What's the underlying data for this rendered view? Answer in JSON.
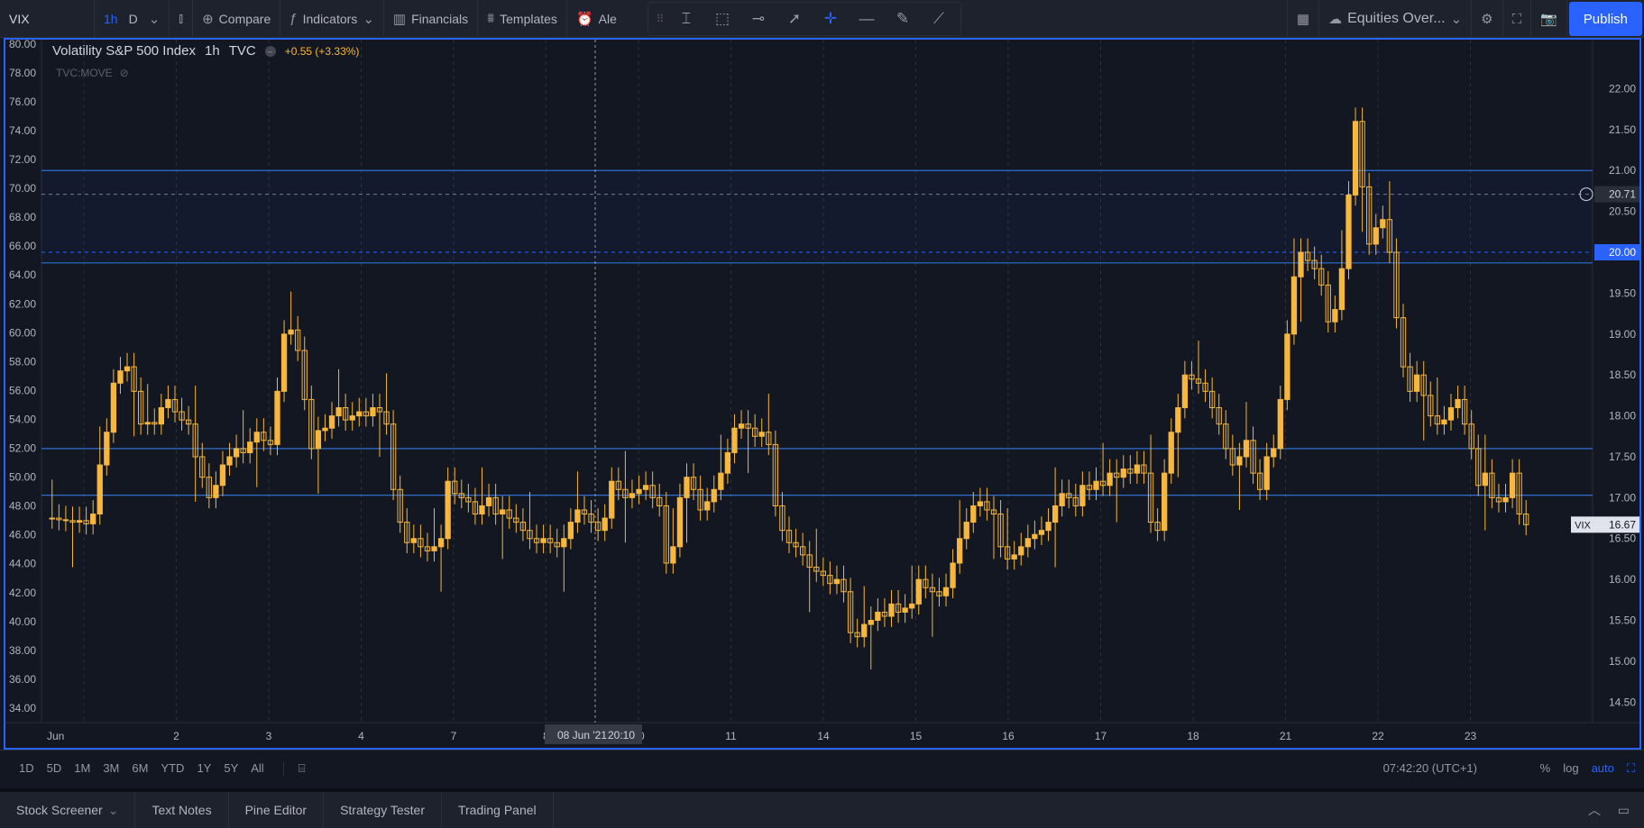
{
  "toolbar": {
    "symbol": "VIX",
    "timeframes": [
      "1h",
      "D"
    ],
    "compare": "Compare",
    "indicators": "Indicators",
    "financials": "Financials",
    "templates": "Templates",
    "alert": "Ale",
    "layout": "Equities Over...",
    "publish": "Publish"
  },
  "legend": {
    "title": "Volatility S&P 500 Index",
    "interval": "1h",
    "source": "TVC",
    "change": "+0.55 (+3.33%)",
    "secondary": "TVC:MOVE"
  },
  "colors": {
    "candle": "#f6b73c",
    "accent": "#2962ff",
    "hline": "#2f6fd1",
    "background": "#131722"
  },
  "chart_data": {
    "type": "candlestick",
    "symbol": "VIX",
    "left_axis": {
      "ticks": [
        "80.00",
        "78.00",
        "76.00",
        "74.00",
        "72.00",
        "70.00",
        "68.00",
        "66.00",
        "64.00",
        "62.00",
        "60.00",
        "58.00",
        "56.00",
        "54.00",
        "52.00",
        "50.00",
        "48.00",
        "46.00",
        "44.00",
        "42.00",
        "40.00",
        "38.00",
        "36.00",
        "34.00"
      ],
      "range": [
        33,
        80.3
      ]
    },
    "right_axis": {
      "ticks": [
        "22.00",
        "21.50",
        "21.00",
        "20.50",
        "20.00",
        "19.50",
        "19.00",
        "18.50",
        "18.00",
        "17.50",
        "17.00",
        "16.50",
        "16.00",
        "15.50",
        "15.00",
        "14.50"
      ],
      "range": [
        14.25,
        22.6
      ]
    },
    "x_ticks": [
      "Jun",
      "2",
      "3",
      "4",
      "7",
      "8",
      "10",
      "11",
      "14",
      "15",
      "16",
      "17",
      "18",
      "21",
      "22",
      "23"
    ],
    "crosshair_label": "08 Jun '21",
    "crosshair_time": "20:10",
    "price_labels": {
      "last": "16.67",
      "last_tag": "VIX",
      "mark_1": "20.71",
      "mark_2": "20.00"
    },
    "horizontal_lines": [
      21.0,
      19.87,
      17.6,
      17.03
    ],
    "dashed_lines": [
      20.71,
      20.0
    ],
    "closes": [
      16.75,
      16.73,
      16.72,
      16.7,
      16.72,
      16.68,
      16.8,
      17.4,
      17.8,
      18.4,
      18.55,
      18.6,
      18.3,
      17.9,
      17.92,
      17.9,
      18.1,
      18.2,
      18.05,
      17.95,
      17.9,
      17.5,
      17.25,
      17.0,
      17.15,
      17.4,
      17.5,
      17.6,
      17.55,
      17.68,
      17.8,
      17.7,
      17.65,
      18.3,
      19.0,
      19.05,
      18.8,
      18.2,
      17.6,
      17.82,
      17.85,
      18.0,
      18.1,
      17.95,
      18.0,
      18.05,
      18.0,
      18.1,
      18.05,
      17.9,
      17.1,
      16.7,
      16.45,
      16.5,
      16.4,
      16.35,
      16.4,
      16.5,
      17.2,
      17.05,
      17.0,
      16.95,
      16.8,
      16.9,
      17.0,
      16.8,
      16.85,
      16.75,
      16.7,
      16.6,
      16.5,
      16.45,
      16.5,
      16.45,
      16.4,
      16.5,
      16.7,
      16.85,
      16.8,
      16.7,
      16.6,
      16.75,
      17.2,
      17.1,
      17.0,
      17.05,
      17.1,
      17.15,
      17.0,
      16.9,
      16.2,
      16.4,
      17.0,
      17.25,
      17.1,
      16.85,
      16.95,
      17.1,
      17.3,
      17.55,
      17.85,
      17.9,
      17.85,
      17.75,
      17.8,
      17.65,
      16.9,
      16.6,
      16.45,
      16.4,
      16.3,
      16.15,
      16.1,
      16.05,
      15.95,
      16.0,
      15.85,
      15.35,
      15.3,
      15.45,
      15.5,
      15.6,
      15.55,
      15.7,
      15.6,
      15.65,
      15.7,
      16.0,
      15.9,
      15.85,
      15.8,
      15.9,
      16.2,
      16.5,
      16.7,
      16.9,
      16.95,
      16.85,
      16.8,
      16.4,
      16.25,
      16.3,
      16.4,
      16.5,
      16.55,
      16.6,
      16.7,
      16.9,
      17.05,
      17.0,
      16.9,
      17.15,
      17.1,
      17.2,
      17.15,
      17.3,
      17.25,
      17.35,
      17.3,
      17.4,
      17.3,
      16.7,
      16.6,
      17.3,
      17.8,
      18.1,
      18.5,
      18.45,
      18.4,
      18.3,
      18.1,
      17.9,
      17.6,
      17.4,
      17.5,
      17.7,
      17.3,
      17.1,
      17.5,
      17.6,
      18.2,
      19.0,
      19.7,
      20.0,
      19.9,
      19.8,
      19.6,
      19.15,
      19.3,
      19.8,
      20.7,
      21.6,
      20.8,
      20.1,
      20.3,
      20.4,
      20.0,
      19.2,
      18.6,
      18.3,
      18.5,
      18.25,
      18.0,
      17.9,
      17.95,
      18.1,
      18.2,
      17.9,
      17.6,
      17.15,
      17.3,
      17.0,
      16.95,
      17.0,
      17.3,
      16.8,
      16.67
    ]
  },
  "bottom_bar": {
    "ranges": [
      "1D",
      "5D",
      "1M",
      "3M",
      "6M",
      "YTD",
      "1Y",
      "5Y",
      "All"
    ],
    "clock": "07:42:20 (UTC+1)",
    "scale": [
      "%",
      "log",
      "auto"
    ]
  },
  "panel_tabs": [
    "Stock Screener",
    "Text Notes",
    "Pine Editor",
    "Strategy Tester",
    "Trading Panel"
  ]
}
